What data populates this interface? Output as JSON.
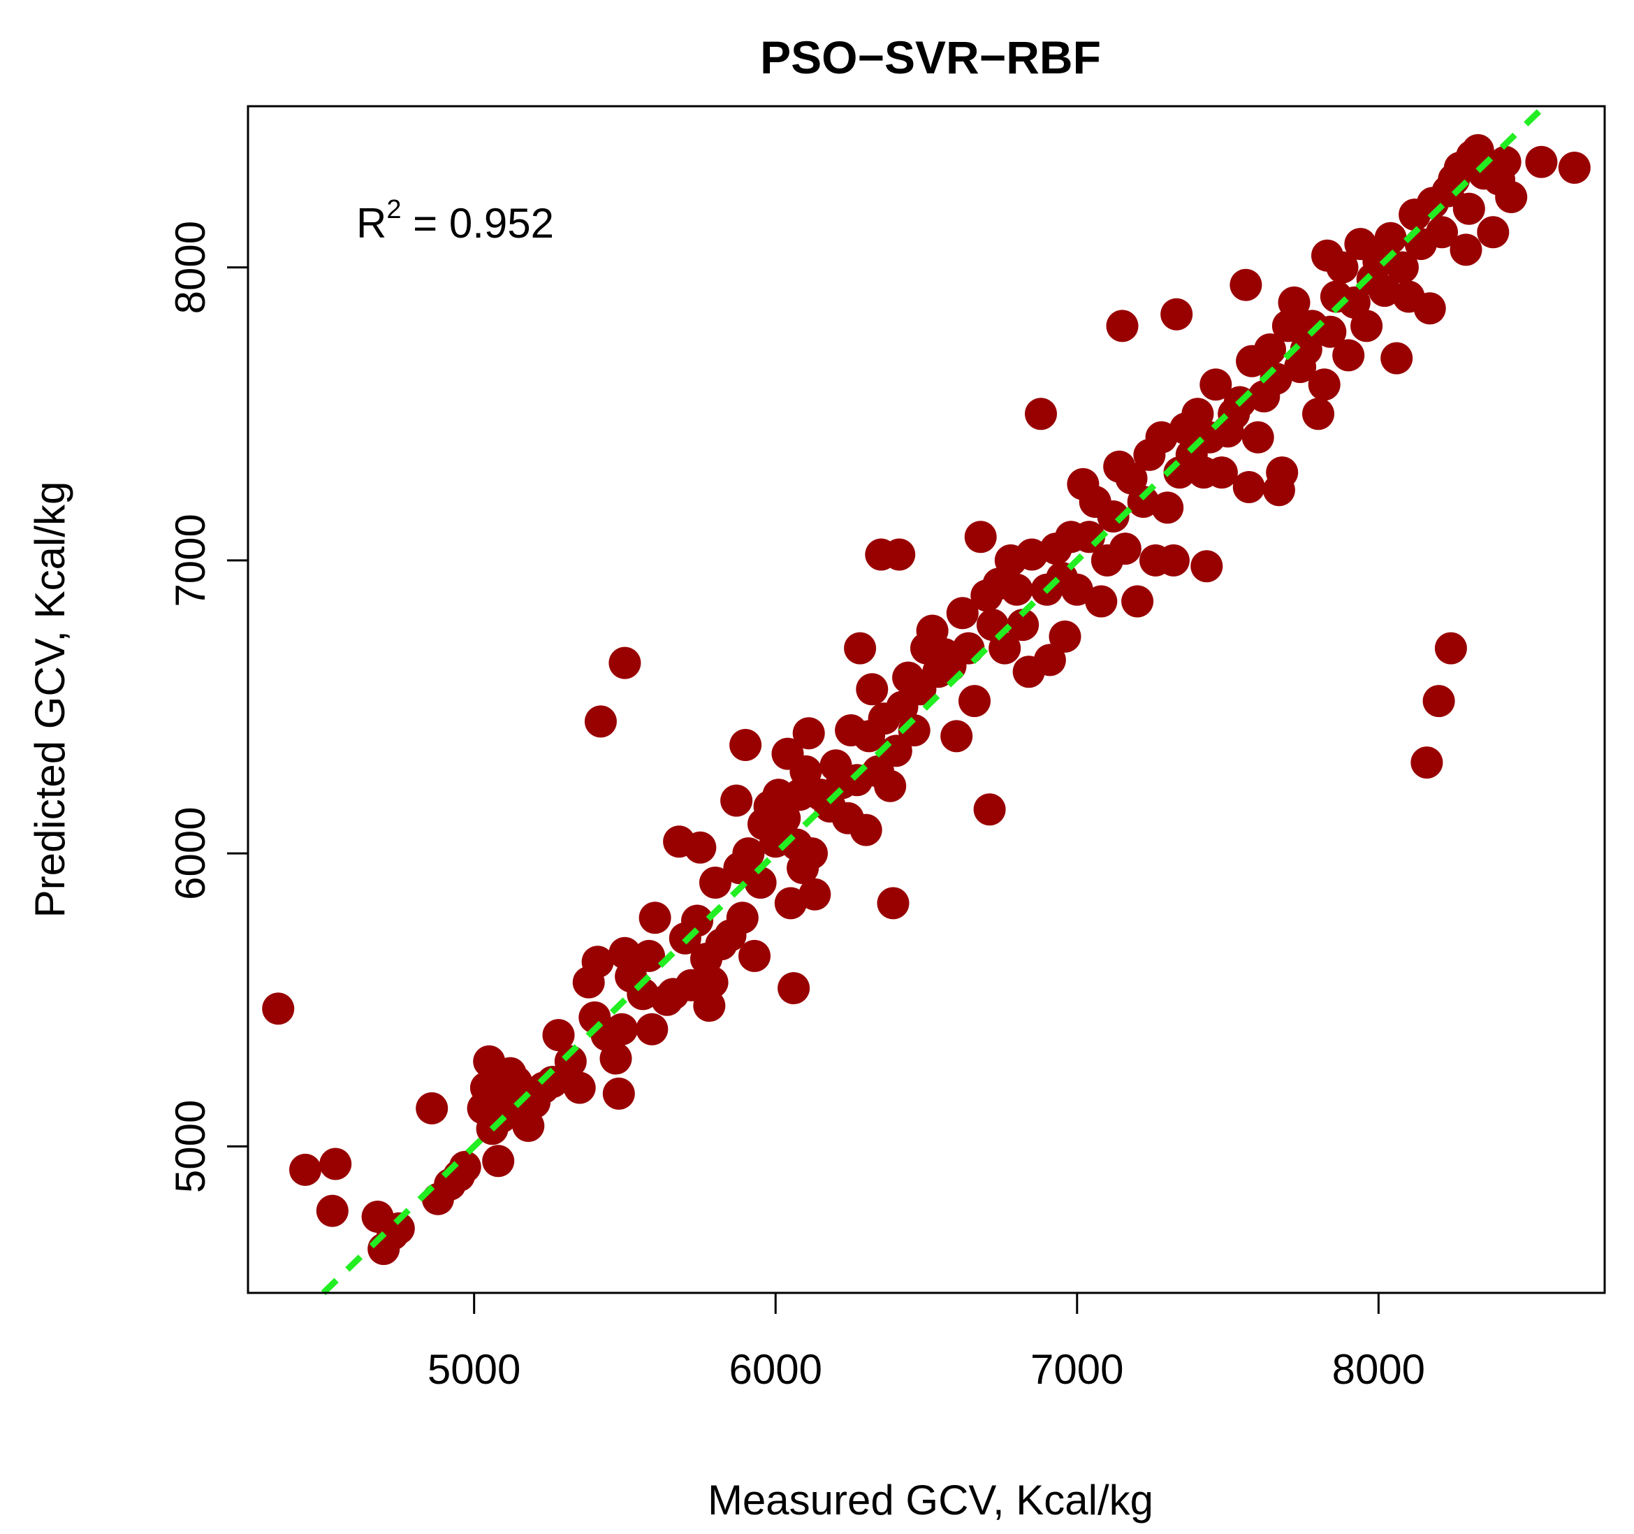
{
  "chart_data": {
    "type": "scatter",
    "title": "PSO−SVR−RBF",
    "xlabel": "Measured GCV, Kcal/kg",
    "ylabel": "Predicted GCV, Kcal/kg",
    "xlim": [
      4250,
      8750
    ],
    "ylim": [
      4500,
      8550
    ],
    "x_ticks": [
      5000,
      6000,
      7000,
      8000
    ],
    "x_tick_labels": [
      "5000",
      "6000",
      "7000",
      "8000"
    ],
    "y_ticks": [
      5000,
      6000,
      7000,
      8000
    ],
    "y_tick_labels": [
      "5000",
      "6000",
      "7000",
      "8000"
    ],
    "grid": false,
    "legend": "none",
    "annotation": {
      "prefix": "R",
      "superscript": "2",
      "text": " = 0.952"
    },
    "reference_line": {
      "type": "y = x",
      "style": "dashed",
      "color": "#22ee22"
    },
    "point_color": "#990000",
    "line_color": "#22ee22",
    "series": [
      {
        "points": [
          [
            4350,
            5470
          ],
          [
            4440,
            4920
          ],
          [
            4540,
            4940
          ],
          [
            4530,
            4780
          ],
          [
            4680,
            4760
          ],
          [
            4700,
            4650
          ],
          [
            4730,
            4700
          ],
          [
            4750,
            4720
          ],
          [
            4860,
            5130
          ],
          [
            4880,
            4820
          ],
          [
            4920,
            4870
          ],
          [
            4950,
            4900
          ],
          [
            4970,
            4930
          ],
          [
            5030,
            5130
          ],
          [
            5040,
            5200
          ],
          [
            5050,
            5290
          ],
          [
            5060,
            5060
          ],
          [
            5080,
            4950
          ],
          [
            5090,
            5100
          ],
          [
            5100,
            5180
          ],
          [
            5120,
            5250
          ],
          [
            5140,
            5220
          ],
          [
            5170,
            5120
          ],
          [
            5180,
            5070
          ],
          [
            5200,
            5150
          ],
          [
            5230,
            5200
          ],
          [
            5260,
            5220
          ],
          [
            5280,
            5380
          ],
          [
            5320,
            5290
          ],
          [
            5350,
            5200
          ],
          [
            5380,
            5560
          ],
          [
            5400,
            5440
          ],
          [
            5410,
            5630
          ],
          [
            5420,
            6450
          ],
          [
            5440,
            5380
          ],
          [
            5470,
            5300
          ],
          [
            5480,
            5180
          ],
          [
            5490,
            5400
          ],
          [
            5500,
            5660
          ],
          [
            5500,
            6650
          ],
          [
            5520,
            5580
          ],
          [
            5560,
            5520
          ],
          [
            5580,
            5650
          ],
          [
            5590,
            5400
          ],
          [
            5600,
            5780
          ],
          [
            5640,
            5500
          ],
          [
            5660,
            5520
          ],
          [
            5680,
            6040
          ],
          [
            5700,
            5710
          ],
          [
            5720,
            5550
          ],
          [
            5740,
            5770
          ],
          [
            5750,
            6020
          ],
          [
            5770,
            5640
          ],
          [
            5780,
            5480
          ],
          [
            5790,
            5560
          ],
          [
            5800,
            5900
          ],
          [
            5820,
            5690
          ],
          [
            5850,
            5720
          ],
          [
            5870,
            6180
          ],
          [
            5880,
            5950
          ],
          [
            5890,
            5780
          ],
          [
            5900,
            6370
          ],
          [
            5910,
            6000
          ],
          [
            5930,
            5650
          ],
          [
            5950,
            5900
          ],
          [
            5960,
            6100
          ],
          [
            5980,
            6160
          ],
          [
            6000,
            6040
          ],
          [
            6010,
            6200
          ],
          [
            6030,
            6120
          ],
          [
            6040,
            6340
          ],
          [
            6050,
            5830
          ],
          [
            6060,
            5540
          ],
          [
            6070,
            6030
          ],
          [
            6080,
            6200
          ],
          [
            6090,
            5950
          ],
          [
            6100,
            6280
          ],
          [
            6110,
            6410
          ],
          [
            6120,
            6000
          ],
          [
            6130,
            5860
          ],
          [
            6150,
            6200
          ],
          [
            6180,
            6160
          ],
          [
            6200,
            6300
          ],
          [
            6220,
            6240
          ],
          [
            6240,
            6120
          ],
          [
            6250,
            6420
          ],
          [
            6270,
            6250
          ],
          [
            6280,
            6700
          ],
          [
            6300,
            6080
          ],
          [
            6310,
            6400
          ],
          [
            6320,
            6560
          ],
          [
            6340,
            6280
          ],
          [
            6350,
            7020
          ],
          [
            6360,
            6460
          ],
          [
            6380,
            6230
          ],
          [
            6390,
            5830
          ],
          [
            6400,
            6350
          ],
          [
            6410,
            7020
          ],
          [
            6420,
            6500
          ],
          [
            6440,
            6600
          ],
          [
            6460,
            6420
          ],
          [
            6480,
            6560
          ],
          [
            6500,
            6700
          ],
          [
            6520,
            6760
          ],
          [
            6540,
            6620
          ],
          [
            6560,
            6680
          ],
          [
            6580,
            6640
          ],
          [
            6600,
            6400
          ],
          [
            6620,
            6820
          ],
          [
            6640,
            6700
          ],
          [
            6660,
            6520
          ],
          [
            6680,
            7080
          ],
          [
            6700,
            6880
          ],
          [
            6710,
            6150
          ],
          [
            6720,
            6780
          ],
          [
            6740,
            6920
          ],
          [
            6760,
            6700
          ],
          [
            6780,
            7000
          ],
          [
            6800,
            6900
          ],
          [
            6820,
            6780
          ],
          [
            6840,
            6620
          ],
          [
            6850,
            7020
          ],
          [
            6880,
            7500
          ],
          [
            6900,
            6900
          ],
          [
            6910,
            6660
          ],
          [
            6930,
            7040
          ],
          [
            6950,
            6940
          ],
          [
            6960,
            6740
          ],
          [
            6980,
            7080
          ],
          [
            7000,
            6900
          ],
          [
            7020,
            7260
          ],
          [
            7040,
            7080
          ],
          [
            7060,
            7200
          ],
          [
            7080,
            6860
          ],
          [
            7100,
            7000
          ],
          [
            7120,
            7150
          ],
          [
            7140,
            7320
          ],
          [
            7150,
            7800
          ],
          [
            7160,
            7040
          ],
          [
            7180,
            7280
          ],
          [
            7200,
            6860
          ],
          [
            7220,
            7200
          ],
          [
            7240,
            7360
          ],
          [
            7260,
            7000
          ],
          [
            7280,
            7420
          ],
          [
            7300,
            7180
          ],
          [
            7320,
            7000
          ],
          [
            7330,
            7840
          ],
          [
            7340,
            7300
          ],
          [
            7360,
            7450
          ],
          [
            7380,
            7360
          ],
          [
            7400,
            7500
          ],
          [
            7420,
            7300
          ],
          [
            7430,
            6980
          ],
          [
            7440,
            7420
          ],
          [
            7460,
            7600
          ],
          [
            7480,
            7300
          ],
          [
            7500,
            7440
          ],
          [
            7520,
            7500
          ],
          [
            7540,
            7540
          ],
          [
            7560,
            7940
          ],
          [
            7570,
            7250
          ],
          [
            7580,
            7680
          ],
          [
            7600,
            7420
          ],
          [
            7620,
            7560
          ],
          [
            7640,
            7720
          ],
          [
            7660,
            7620
          ],
          [
            7670,
            7240
          ],
          [
            7680,
            7300
          ],
          [
            7700,
            7800
          ],
          [
            7720,
            7880
          ],
          [
            7740,
            7660
          ],
          [
            7760,
            7720
          ],
          [
            7780,
            7800
          ],
          [
            7800,
            7500
          ],
          [
            7820,
            7600
          ],
          [
            7830,
            8040
          ],
          [
            7840,
            7780
          ],
          [
            7860,
            7900
          ],
          [
            7880,
            8000
          ],
          [
            7900,
            7700
          ],
          [
            7920,
            7880
          ],
          [
            7940,
            8080
          ],
          [
            7960,
            7800
          ],
          [
            7980,
            7960
          ],
          [
            8000,
            8020
          ],
          [
            8020,
            7920
          ],
          [
            8040,
            8100
          ],
          [
            8060,
            7690
          ],
          [
            8080,
            8000
          ],
          [
            8100,
            7900
          ],
          [
            8120,
            8180
          ],
          [
            8140,
            8080
          ],
          [
            8160,
            6310
          ],
          [
            8170,
            7860
          ],
          [
            8180,
            8220
          ],
          [
            8200,
            6520
          ],
          [
            8210,
            8120
          ],
          [
            8230,
            8260
          ],
          [
            8240,
            6700
          ],
          [
            8250,
            8300
          ],
          [
            8270,
            8340
          ],
          [
            8290,
            8060
          ],
          [
            8300,
            8200
          ],
          [
            8310,
            8380
          ],
          [
            8330,
            8400
          ],
          [
            8350,
            8320
          ],
          [
            8380,
            8120
          ],
          [
            8400,
            8300
          ],
          [
            8420,
            8360
          ],
          [
            8440,
            8240
          ],
          [
            8540,
            8360
          ],
          [
            8650,
            8340
          ]
        ]
      }
    ]
  }
}
